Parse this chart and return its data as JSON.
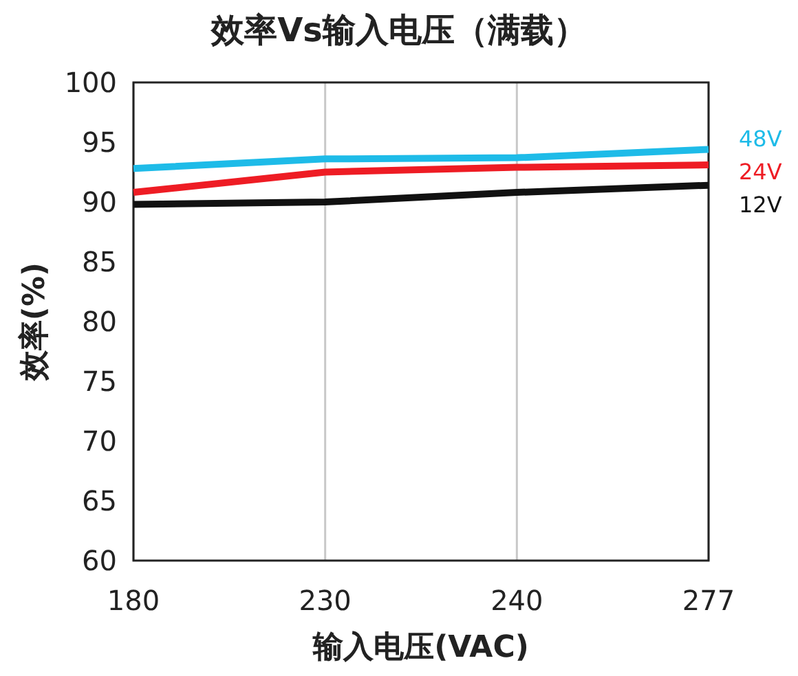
{
  "chart_data": {
    "type": "line",
    "title": "效率Vs输入电压（满载）",
    "xlabel": "输入电压(VAC)",
    "ylabel": "效率(%)",
    "categories": [
      "180",
      "230",
      "240",
      "277"
    ],
    "series": [
      {
        "name": "48V",
        "color": "#1ebbe8",
        "values": [
          92.8,
          93.6,
          93.7,
          94.4
        ]
      },
      {
        "name": "24V",
        "color": "#ee1c24",
        "values": [
          90.8,
          92.5,
          92.9,
          93.1
        ]
      },
      {
        "name": "12V",
        "color": "#111111",
        "values": [
          89.8,
          90.0,
          90.8,
          91.4
        ]
      }
    ],
    "ylim": [
      60,
      100
    ],
    "yticks": [
      60,
      65,
      70,
      75,
      80,
      85,
      90,
      95,
      100
    ],
    "grid": "x"
  }
}
